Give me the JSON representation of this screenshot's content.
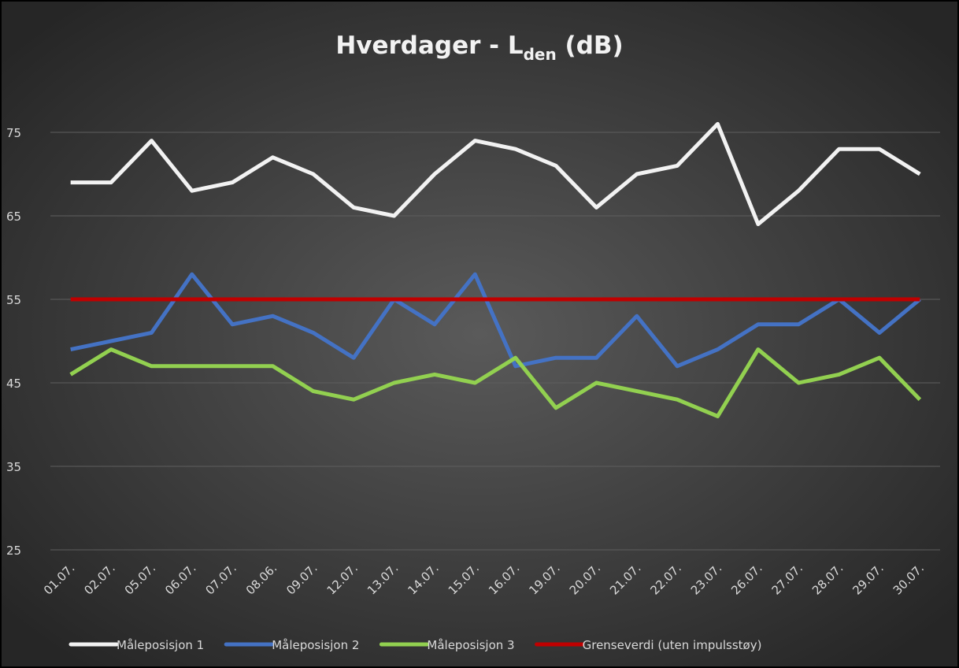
{
  "chart_data": {
    "type": "line",
    "title": [
      "Hverdager - L",
      "den",
      " (dB)"
    ],
    "categories": [
      "01.07.",
      "02.07.",
      "05.07.",
      "06.07.",
      "07.07.",
      "08.06.",
      "09.07.",
      "12.07.",
      "13.07.",
      "14.07.",
      "15.07.",
      "16.07.",
      "19.07.",
      "20.07.",
      "21.07.",
      "22.07.",
      "23.07.",
      "26.07.",
      "27.07.",
      "28.07.",
      "29.07.",
      "30.07."
    ],
    "series": [
      {
        "name": "Måleposisjon 1",
        "color": "#f2f2f2",
        "values": [
          69,
          69,
          74,
          68,
          69,
          72,
          70,
          66,
          65,
          70,
          74,
          73,
          71,
          66,
          70,
          71,
          76,
          64,
          68,
          73,
          73,
          70
        ]
      },
      {
        "name": "Måleposisjon 2",
        "color": "#4472c4",
        "values": [
          49,
          50,
          51,
          58,
          52,
          53,
          51,
          48,
          55,
          52,
          58,
          47,
          48,
          48,
          53,
          47,
          49,
          52,
          52,
          55,
          51,
          55
        ]
      },
      {
        "name": "Måleposisjon 3",
        "color": "#92d050",
        "values": [
          46,
          49,
          47,
          47,
          47,
          47,
          44,
          43,
          45,
          46,
          45,
          48,
          42,
          45,
          44,
          43,
          41,
          49,
          45,
          46,
          48,
          43
        ]
      },
      {
        "name": "Grenseverdi (uten impulsstøy)",
        "color": "#c00000",
        "values": [
          55,
          55,
          55,
          55,
          55,
          55,
          55,
          55,
          55,
          55,
          55,
          55,
          55,
          55,
          55,
          55,
          55,
          55,
          55,
          55,
          55,
          55
        ]
      }
    ],
    "ylim": [
      25,
      80
    ],
    "yticks": [
      25,
      35,
      45,
      55,
      65,
      75
    ],
    "grid": true,
    "legend": "bottom"
  }
}
